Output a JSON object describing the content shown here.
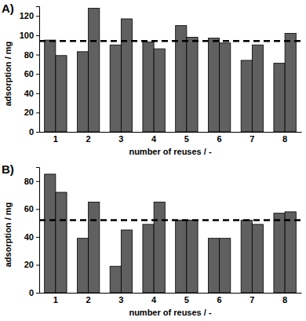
{
  "chart_data": [
    {
      "type": "bar",
      "title": "A)",
      "x_label": "number of reuses / -",
      "y_label": "adsorption / mg",
      "categories": [
        "1",
        "2",
        "3",
        "4",
        "5",
        "6",
        "7",
        "8"
      ],
      "series": [
        {
          "color": "#606060",
          "values": [
            95,
            83,
            90,
            93,
            110,
            97,
            74,
            71
          ]
        },
        {
          "color": "#606060",
          "values": [
            79,
            128,
            117,
            86,
            98,
            92,
            90,
            102
          ]
        }
      ],
      "mean": 94,
      "ylim": [
        0,
        130
      ],
      "yticks": [
        0,
        20,
        40,
        60,
        80,
        100,
        120
      ],
      "grid": false
    },
    {
      "type": "bar",
      "title": "B)",
      "x_label": "number of reuses / -",
      "y_label": "adsorption / mg",
      "categories": [
        "1",
        "2",
        "3",
        "4",
        "5",
        "6",
        "7",
        "8"
      ],
      "series": [
        {
          "color": "#606060",
          "values": [
            85,
            39,
            19,
            49,
            52,
            39,
            52,
            57
          ]
        },
        {
          "color": "#606060",
          "values": [
            72,
            65,
            45,
            65,
            52,
            39,
            49,
            58
          ]
        }
      ],
      "mean": 52,
      "ylim": [
        0,
        90
      ],
      "yticks": [
        0,
        20,
        40,
        60,
        80
      ],
      "grid": false
    }
  ]
}
